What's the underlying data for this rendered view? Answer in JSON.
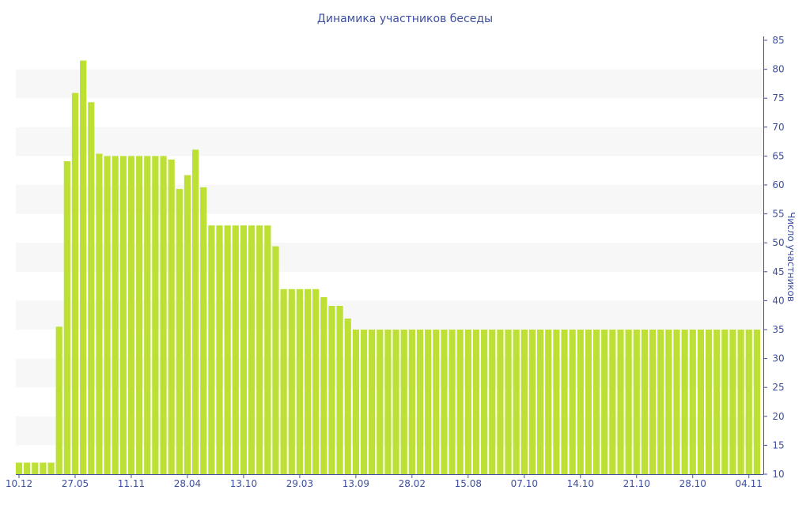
{
  "chart_data": {
    "type": "bar",
    "title": "Динамика участников беседы",
    "xlabel": "",
    "ylabel": "Число участников",
    "ylim": [
      10,
      85
    ],
    "yticks": [
      10,
      15,
      20,
      25,
      30,
      35,
      40,
      45,
      50,
      55,
      60,
      65,
      70,
      75,
      80,
      85
    ],
    "y_axis_side": "right",
    "grid": "alternating horizontal bands",
    "xtick_labels": [
      "10.12",
      "27.05",
      "11.11",
      "28.04",
      "13.10",
      "29.03",
      "13.09",
      "28.02",
      "15.08",
      "07.10",
      "14.10",
      "21.10",
      "28.10",
      "04.11"
    ],
    "xtick_every_n_bars": 7,
    "values": [
      12,
      12,
      12,
      12,
      12,
      35.5,
      64.1,
      75.9,
      81.5,
      74.3,
      65.4,
      65,
      65,
      65,
      65,
      65,
      65,
      65,
      65,
      64.4,
      59.3,
      61.7,
      66.1,
      59.6,
      53,
      53,
      53,
      53,
      53,
      53,
      53,
      53,
      49.4,
      42,
      42,
      42,
      42,
      42,
      40.6,
      39.1,
      39.1,
      36.9,
      35,
      35,
      35,
      35,
      35,
      35,
      35,
      35,
      35,
      35,
      35,
      35,
      35,
      35,
      35,
      35,
      35,
      35,
      35,
      35,
      35,
      35,
      35,
      35,
      35,
      35,
      35,
      35,
      35,
      35,
      35,
      35,
      35,
      35,
      35,
      35,
      35,
      35,
      35,
      35,
      35,
      35,
      35,
      35,
      35,
      35,
      35,
      35,
      35,
      35,
      35
    ],
    "colors": {
      "bar": "#bde035",
      "text": "#3d4f9f",
      "band": "#f7f7f7",
      "axis": "#3d4f9f"
    }
  }
}
